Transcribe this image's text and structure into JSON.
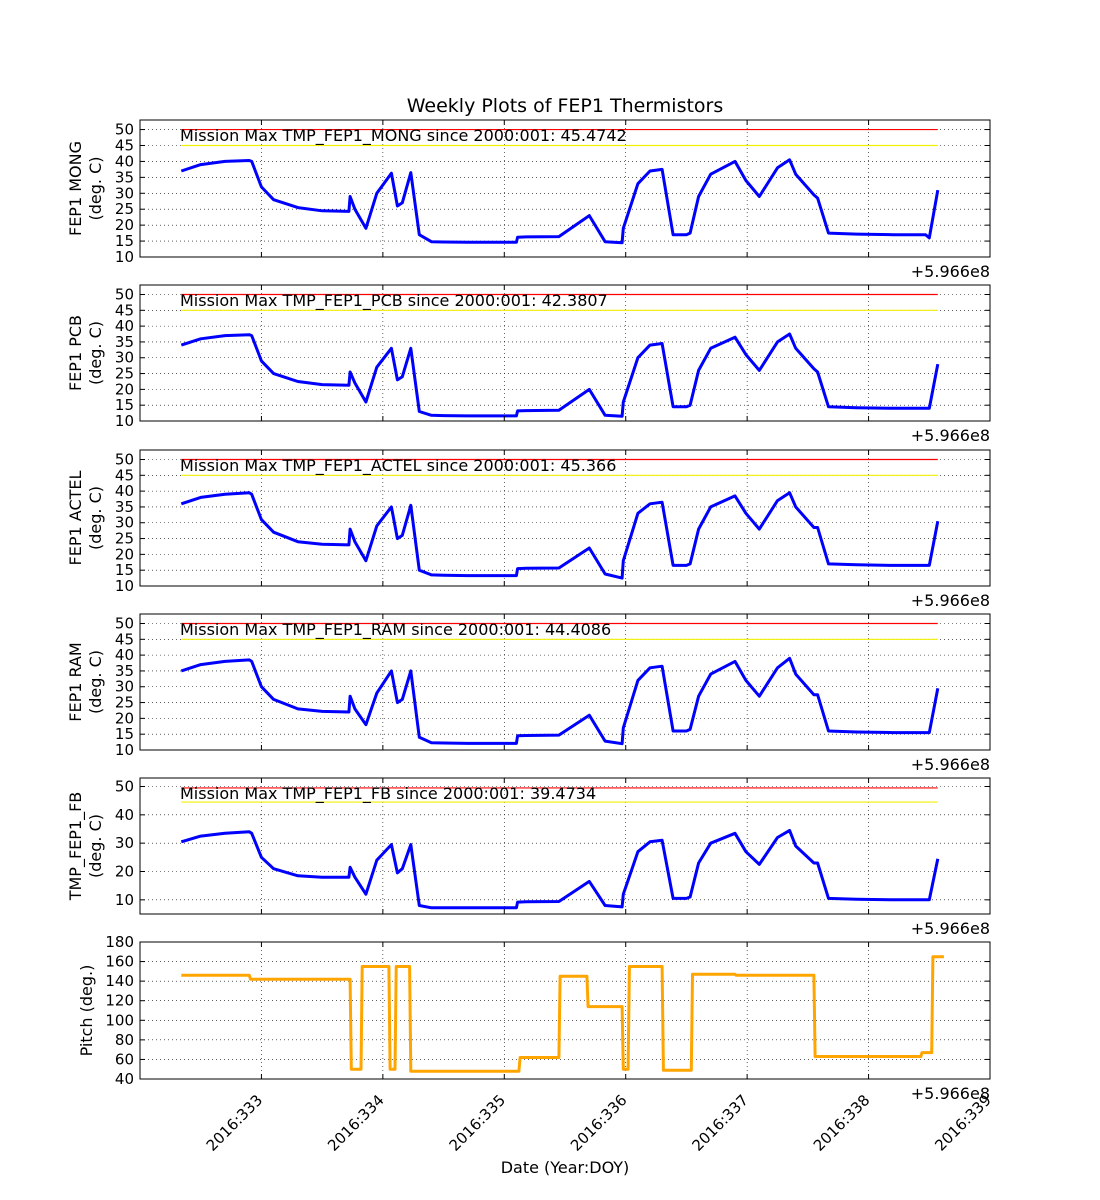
{
  "figure": {
    "title": "Weekly Plots of FEP1 Thermistors",
    "xlabel": "Date (Year:DOY)",
    "offset_label": "+5.966e8"
  },
  "chart_data": [
    {
      "type": "line",
      "ylabel": [
        "FEP1 MONG",
        "(deg. C)"
      ],
      "ylim": [
        10,
        53
      ],
      "yticks": [
        10,
        15,
        20,
        25,
        30,
        35,
        40,
        45,
        50
      ],
      "xlim": [
        332.0,
        339.0
      ],
      "xticks": [
        "2016:333",
        "2016:334",
        "2016:335",
        "2016:336",
        "2016:337",
        "2016:338",
        "2016:339"
      ],
      "grid": true,
      "annotation": "Mission Max TMP_FEP1_MONG since 2000:001: 45.4742",
      "limits": {
        "red": 50,
        "yellow": 45
      },
      "series": [
        {
          "color": "#0000ff",
          "x": [
            332.34,
            332.5,
            332.7,
            332.9,
            332.92,
            333.0,
            333.1,
            333.3,
            333.5,
            333.72,
            333.73,
            333.77,
            333.86,
            333.95,
            334.07,
            334.12,
            334.16,
            334.23,
            334.3,
            334.4,
            334.5,
            334.7,
            335.1,
            335.11,
            335.18,
            335.45,
            335.7,
            335.83,
            335.97,
            335.98,
            336.1,
            336.2,
            336.3,
            336.39,
            336.5,
            336.53,
            336.6,
            336.7,
            336.9,
            336.99,
            337.1,
            337.25,
            337.35,
            337.4,
            337.55,
            337.58,
            337.67,
            337.9,
            338.2,
            338.47,
            338.5,
            338.57
          ],
          "y": [
            37,
            39,
            40,
            40.3,
            40,
            32,
            28,
            25.5,
            24.5,
            24.3,
            29,
            25,
            19,
            30,
            36.3,
            26,
            27,
            36.5,
            17,
            14.8,
            14.7,
            14.6,
            14.6,
            16.2,
            16.3,
            16.4,
            23,
            14.8,
            14.5,
            19,
            33,
            37,
            37.5,
            17,
            17,
            17.5,
            29,
            36,
            40,
            34,
            29,
            38,
            40.5,
            36,
            29.5,
            28.5,
            17.5,
            17.2,
            17,
            17,
            16,
            31
          ]
        }
      ]
    },
    {
      "type": "line",
      "ylabel": [
        "FEP1 PCB",
        "(deg. C)"
      ],
      "ylim": [
        10,
        53
      ],
      "yticks": [
        10,
        15,
        20,
        25,
        30,
        35,
        40,
        45,
        50
      ],
      "xlim": [
        332.0,
        339.0
      ],
      "xticks": [
        "2016:333",
        "2016:334",
        "2016:335",
        "2016:336",
        "2016:337",
        "2016:338",
        "2016:339"
      ],
      "grid": true,
      "annotation": "Mission Max TMP_FEP1_PCB since 2000:001: 42.3807",
      "limits": {
        "red": 50,
        "yellow": 45
      },
      "series": [
        {
          "color": "#0000ff",
          "x": [
            332.34,
            332.5,
            332.7,
            332.9,
            332.92,
            333.0,
            333.1,
            333.3,
            333.5,
            333.72,
            333.73,
            333.77,
            333.86,
            333.95,
            334.07,
            334.12,
            334.16,
            334.23,
            334.3,
            334.4,
            334.5,
            334.7,
            335.1,
            335.11,
            335.18,
            335.45,
            335.7,
            335.83,
            335.97,
            335.98,
            336.1,
            336.2,
            336.3,
            336.39,
            336.5,
            336.53,
            336.6,
            336.7,
            336.9,
            336.99,
            337.1,
            337.25,
            337.35,
            337.4,
            337.55,
            337.58,
            337.67,
            337.9,
            338.2,
            338.47,
            338.5,
            338.57
          ],
          "y": [
            34,
            36,
            37,
            37.3,
            37,
            29,
            25,
            22.5,
            21.5,
            21.3,
            25.5,
            22,
            16,
            27,
            33,
            23,
            24,
            33,
            13,
            11.8,
            11.7,
            11.6,
            11.6,
            13.2,
            13.3,
            13.4,
            20,
            11.8,
            11.5,
            16,
            30,
            34,
            34.5,
            14.5,
            14.5,
            15,
            26,
            33,
            36.5,
            31,
            26,
            35,
            37.5,
            33,
            26.5,
            25.5,
            14.5,
            14.2,
            14,
            14,
            14,
            28
          ]
        }
      ]
    },
    {
      "type": "line",
      "ylabel": [
        "FEP1 ACTEL",
        "(deg. C)"
      ],
      "ylim": [
        10,
        53
      ],
      "yticks": [
        10,
        15,
        20,
        25,
        30,
        35,
        40,
        45,
        50
      ],
      "xlim": [
        332.0,
        339.0
      ],
      "xticks": [
        "2016:333",
        "2016:334",
        "2016:335",
        "2016:336",
        "2016:337",
        "2016:338",
        "2016:339"
      ],
      "grid": true,
      "annotation": "Mission Max TMP_FEP1_ACTEL since 2000:001: 45.366",
      "limits": {
        "red": 50,
        "yellow": 45
      },
      "series": [
        {
          "color": "#0000ff",
          "x": [
            332.34,
            332.5,
            332.7,
            332.9,
            332.92,
            333.0,
            333.1,
            333.3,
            333.5,
            333.72,
            333.73,
            333.77,
            333.86,
            333.95,
            334.07,
            334.12,
            334.16,
            334.23,
            334.3,
            334.4,
            334.5,
            334.7,
            335.1,
            335.11,
            335.18,
            335.45,
            335.7,
            335.83,
            335.97,
            335.98,
            336.1,
            336.2,
            336.3,
            336.39,
            336.5,
            336.53,
            336.6,
            336.7,
            336.9,
            336.99,
            337.1,
            337.25,
            337.35,
            337.4,
            337.55,
            337.58,
            337.67,
            337.9,
            338.2,
            338.47,
            338.5,
            338.57
          ],
          "y": [
            36,
            38,
            39,
            39.5,
            39,
            31,
            27,
            24,
            23.2,
            23,
            28,
            24,
            18,
            29,
            35,
            25,
            26,
            35.5,
            15,
            13.5,
            13.4,
            13.3,
            13.3,
            15.5,
            15.6,
            15.7,
            22,
            13.8,
            12.5,
            18,
            33,
            36,
            36.5,
            16.5,
            16.5,
            17,
            28,
            35,
            38.5,
            33,
            28,
            37,
            39.5,
            35,
            28.5,
            28.5,
            17,
            16.7,
            16.5,
            16.5,
            16.5,
            30.5
          ]
        }
      ]
    },
    {
      "type": "line",
      "ylabel": [
        "FEP1 RAM",
        "(deg. C)"
      ],
      "ylim": [
        10,
        53
      ],
      "yticks": [
        10,
        15,
        20,
        25,
        30,
        35,
        40,
        45,
        50
      ],
      "xlim": [
        332.0,
        339.0
      ],
      "xticks": [
        "2016:333",
        "2016:334",
        "2016:335",
        "2016:336",
        "2016:337",
        "2016:338",
        "2016:339"
      ],
      "grid": true,
      "annotation": "Mission Max TMP_FEP1_RAM since 2000:001: 44.4086",
      "limits": {
        "red": 50,
        "yellow": 45
      },
      "series": [
        {
          "color": "#0000ff",
          "x": [
            332.34,
            332.5,
            332.7,
            332.9,
            332.92,
            333.0,
            333.1,
            333.3,
            333.5,
            333.72,
            333.73,
            333.77,
            333.86,
            333.95,
            334.07,
            334.12,
            334.16,
            334.23,
            334.3,
            334.4,
            334.5,
            334.7,
            335.1,
            335.11,
            335.18,
            335.45,
            335.7,
            335.83,
            335.97,
            335.98,
            336.1,
            336.2,
            336.3,
            336.39,
            336.5,
            336.53,
            336.6,
            336.7,
            336.9,
            336.99,
            337.1,
            337.25,
            337.35,
            337.4,
            337.55,
            337.58,
            337.67,
            337.9,
            338.2,
            338.47,
            338.5,
            338.57
          ],
          "y": [
            35,
            37,
            38,
            38.5,
            38,
            30,
            26,
            23,
            22.2,
            22,
            27,
            23,
            18,
            28,
            35,
            25,
            26,
            35,
            14,
            12.3,
            12.2,
            12.1,
            12.1,
            14.5,
            14.6,
            14.7,
            21,
            12.8,
            12,
            17,
            32,
            36,
            36.5,
            16,
            16,
            16.5,
            27,
            34,
            38,
            32,
            27,
            36,
            39,
            34,
            27.5,
            27.5,
            16,
            15.7,
            15.5,
            15.5,
            15.5,
            29.5
          ]
        }
      ]
    },
    {
      "type": "line",
      "ylabel": [
        "TMP_FEP1_FB",
        "(deg. C)"
      ],
      "ylim": [
        5,
        53
      ],
      "yticks": [
        10,
        20,
        30,
        40,
        50
      ],
      "xlim": [
        332.0,
        339.0
      ],
      "xticks": [
        "2016:333",
        "2016:334",
        "2016:335",
        "2016:336",
        "2016:337",
        "2016:338",
        "2016:339"
      ],
      "grid": true,
      "annotation": "Mission Max TMP_FEP1_FB since 2000:001: 39.4734",
      "limits": {
        "red": 49.5,
        "yellow": 44.5
      },
      "series": [
        {
          "color": "#0000ff",
          "x": [
            332.34,
            332.5,
            332.7,
            332.9,
            332.92,
            333.0,
            333.1,
            333.3,
            333.5,
            333.72,
            333.73,
            333.77,
            333.86,
            333.95,
            334.07,
            334.12,
            334.16,
            334.23,
            334.3,
            334.4,
            334.5,
            334.7,
            335.1,
            335.11,
            335.18,
            335.45,
            335.7,
            335.83,
            335.97,
            335.98,
            336.1,
            336.2,
            336.3,
            336.39,
            336.5,
            336.53,
            336.6,
            336.7,
            336.9,
            336.99,
            337.1,
            337.25,
            337.35,
            337.4,
            337.55,
            337.58,
            337.67,
            337.9,
            338.2,
            338.47,
            338.5,
            338.57
          ],
          "y": [
            30.5,
            32.5,
            33.5,
            34,
            33.5,
            25,
            21,
            18.5,
            18,
            18,
            21.5,
            18,
            12,
            24,
            29.5,
            19.5,
            21,
            29.5,
            8,
            7.2,
            7.2,
            7.2,
            7.2,
            9.2,
            9.3,
            9.4,
            16.5,
            8,
            7.5,
            12,
            27,
            30.5,
            31,
            10.5,
            10.5,
            11,
            23,
            30,
            33.5,
            27,
            22.5,
            32,
            34.5,
            29,
            23,
            23,
            10.5,
            10.2,
            10,
            10,
            10,
            24.5
          ]
        }
      ]
    },
    {
      "type": "line",
      "ylabel": [
        "Pitch (deg.)"
      ],
      "ylim": [
        40,
        180
      ],
      "yticks": [
        40,
        60,
        80,
        100,
        120,
        140,
        160,
        180
      ],
      "xlim": [
        332.0,
        339.0
      ],
      "xticks": [
        "2016:333",
        "2016:334",
        "2016:335",
        "2016:336",
        "2016:337",
        "2016:338",
        "2016:339"
      ],
      "grid": true,
      "annotation": "",
      "limits": null,
      "series": [
        {
          "color": "#ffa500",
          "x": [
            332.34,
            332.9,
            332.91,
            333.73,
            333.74,
            333.82,
            333.83,
            334.05,
            334.06,
            334.1,
            334.11,
            334.22,
            334.23,
            335.12,
            335.13,
            335.45,
            335.46,
            335.68,
            335.69,
            335.97,
            335.98,
            336.02,
            336.03,
            336.3,
            336.31,
            336.54,
            336.55,
            336.9,
            336.91,
            337.55,
            337.56,
            338.2,
            338.43,
            338.44,
            338.52,
            338.53,
            338.62
          ],
          "y": [
            146,
            146,
            142,
            142,
            50,
            50,
            155,
            155,
            50,
            50,
            155,
            155,
            48,
            48,
            62,
            62,
            145,
            145,
            114,
            114,
            50,
            50,
            155,
            155,
            49,
            49,
            147,
            147,
            146,
            146,
            63,
            63,
            63,
            67,
            67,
            165,
            165
          ]
        }
      ]
    }
  ]
}
